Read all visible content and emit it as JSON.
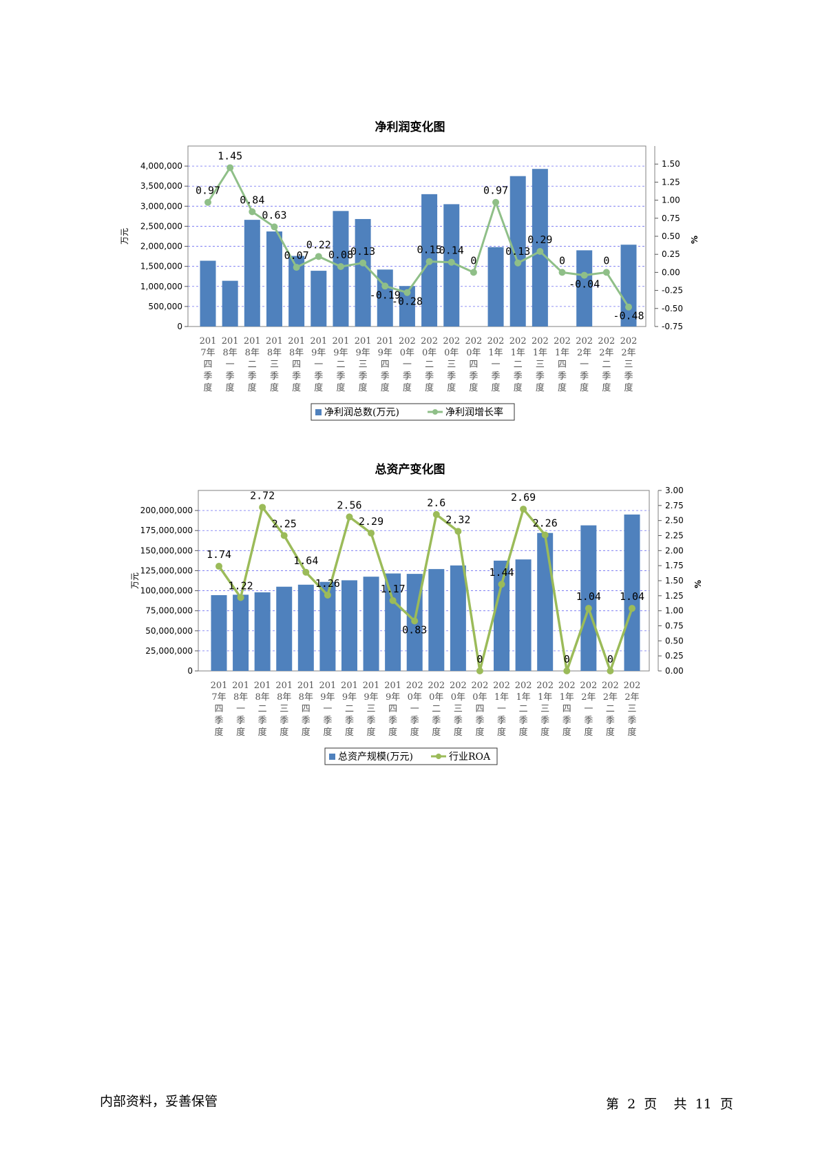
{
  "footer": {
    "left_text": "内部资料，妥善保管",
    "page_prefix": "第",
    "page_number": "2",
    "page_unit": "页",
    "total_prefix": "共",
    "total_pages": "11",
    "total_unit": "页"
  },
  "chart_data": [
    {
      "type": "bar",
      "title": "净利润变化图",
      "ylabel": "万元",
      "y2label": "%",
      "ylim": [
        0,
        4500000
      ],
      "y2lim": [
        -0.75,
        1.75
      ],
      "yticks": [
        "0",
        "500,000",
        "1,000,000",
        "1,500,000",
        "2,000,000",
        "2,500,000",
        "3,000,000",
        "3,500,000",
        "4,000,000"
      ],
      "y2ticks": [
        "-0.75",
        "-0.50",
        "-0.25",
        "0.00",
        "0.25",
        "0.50",
        "0.75",
        "1.00",
        "1.25",
        "1.50"
      ],
      "grid": true,
      "legend_position": "bottom",
      "categories": [
        "2017年四季度",
        "2018年一季度",
        "2018年二季度",
        "2018年三季度",
        "2018年四季度",
        "2019年一季度",
        "2019年二季度",
        "2019年三季度",
        "2019年四季度",
        "2020年一季度",
        "2020年二季度",
        "2020年三季度",
        "2020年四季度",
        "2021年一季度",
        "2021年二季度",
        "2021年三季度",
        "2021年四季度",
        "2022年一季度",
        "2022年二季度",
        "2022年三季度"
      ],
      "series": [
        {
          "name": "净利润总数(万元)",
          "type": "bar",
          "axis": "left",
          "color": "#4f81bd",
          "values": [
            1640000,
            1140000,
            2660000,
            2370000,
            1760000,
            1390000,
            2880000,
            2680000,
            1420000,
            1010000,
            3300000,
            3050000,
            null,
            1980000,
            3750000,
            3930000,
            null,
            1900000,
            null,
            2040000
          ]
        },
        {
          "name": "净利润增长率",
          "type": "line",
          "axis": "right",
          "color": "#8fbf88",
          "values": [
            0.97,
            1.45,
            0.84,
            0.63,
            0.07,
            0.22,
            0.08,
            0.13,
            -0.19,
            -0.28,
            0.15,
            0.14,
            0,
            0.97,
            0.13,
            0.29,
            0,
            -0.04,
            0,
            -0.48
          ],
          "labels": [
            "0.97",
            "1.45",
            "0.84",
            "0.63",
            "0.07",
            "0.22",
            "0.08",
            "0.13",
            "-0.19",
            "-0.28",
            "0.15",
            "0.14",
            "0",
            "0.97",
            "0.13",
            "0.29",
            "0",
            "-0.04",
            "0",
            "-0.48"
          ]
        }
      ]
    },
    {
      "type": "bar",
      "title": "总资产变化图",
      "ylabel": "万元",
      "y2label": "%",
      "ylim": [
        0,
        225000000
      ],
      "y2lim": [
        0,
        3.0
      ],
      "yticks": [
        "0",
        "25,000,000",
        "50,000,000",
        "75,000,000",
        "100,000,000",
        "125,000,000",
        "150,000,000",
        "175,000,000",
        "200,000,000"
      ],
      "y2ticks": [
        "0.00",
        "0.25",
        "0.50",
        "0.75",
        "1.00",
        "1.25",
        "1.50",
        "1.75",
        "2.00",
        "2.25",
        "2.50",
        "2.75",
        "3.00"
      ],
      "grid": true,
      "legend_position": "bottom",
      "categories": [
        "2017年四季度",
        "2018年一季度",
        "2018年二季度",
        "2018年三季度",
        "2018年四季度",
        "2019年一季度",
        "2019年二季度",
        "2019年三季度",
        "2019年四季度",
        "2020年一季度",
        "2020年二季度",
        "2020年三季度",
        "2020年四季度",
        "2021年一季度",
        "2021年二季度",
        "2021年三季度",
        "2021年四季度",
        "2022年一季度",
        "2022年二季度",
        "2022年三季度"
      ],
      "series": [
        {
          "name": "总资产规模(万元)",
          "type": "bar",
          "axis": "left",
          "color": "#4f81bd",
          "values": [
            94500000,
            95000000,
            98000000,
            105000000,
            107500000,
            111000000,
            113000000,
            117500000,
            121500000,
            121000000,
            127000000,
            131500000,
            null,
            137500000,
            139000000,
            172000000,
            null,
            181500000,
            null,
            195000000
          ]
        },
        {
          "name": "行业ROA",
          "type": "line",
          "axis": "right",
          "color": "#9bbb59",
          "values": [
            1.74,
            1.22,
            2.72,
            2.25,
            1.64,
            1.26,
            2.56,
            2.29,
            1.17,
            0.83,
            2.6,
            2.32,
            0,
            1.44,
            2.69,
            2.26,
            0,
            1.04,
            0,
            1.04
          ],
          "labels": [
            "1.74",
            "1.22",
            "2.72",
            "2.25",
            "1.64",
            "1.26",
            "2.56",
            "2.29",
            "1.17",
            "0.83",
            "2.6",
            "2.32",
            "0",
            "1.44",
            "2.69",
            "2.26",
            "0",
            "1.04",
            "0",
            "1.04"
          ]
        }
      ]
    }
  ]
}
